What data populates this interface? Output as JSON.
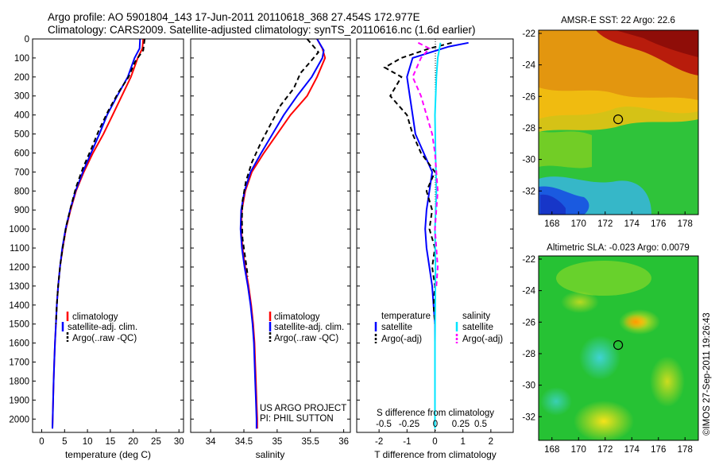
{
  "header": {
    "line1": "Argo profile: AO 5901804_143 17-Jun-2011 20110618_368 27.454S 172.977E",
    "line2": "Climatology: CARS2009. Satellite-adjusted climatology: synTS_20110616.nc (1.6d earlier)"
  },
  "chart_data": [
    {
      "type": "line",
      "panel": "temperature",
      "xlabel": "temperature (deg C)",
      "xlim": [
        -2,
        31
      ],
      "ylim": [
        2070,
        0
      ],
      "xticks": [
        0,
        5,
        10,
        15,
        20,
        25,
        30
      ],
      "yticks": [
        0,
        100,
        200,
        300,
        400,
        500,
        600,
        700,
        800,
        900,
        1000,
        1100,
        1200,
        1300,
        1400,
        1500,
        1600,
        1700,
        1800,
        1900,
        2000
      ],
      "legend": [
        "climatology",
        "satellite-adj. clim.",
        "Argo(..raw -QC)"
      ],
      "series": [
        {
          "name": "climatology",
          "color": "#ff0000",
          "points": [
            [
              22.2,
              0
            ],
            [
              22.0,
              50
            ],
            [
              21.0,
              100
            ],
            [
              19.5,
              200
            ],
            [
              17.5,
              300
            ],
            [
              15.5,
              400
            ],
            [
              13.5,
              500
            ],
            [
              11.2,
              600
            ],
            [
              9.2,
              700
            ],
            [
              7.5,
              800
            ],
            [
              6.3,
              900
            ],
            [
              5.3,
              1000
            ],
            [
              4.6,
              1100
            ],
            [
              4.0,
              1200
            ],
            [
              3.6,
              1300
            ],
            [
              3.3,
              1400
            ],
            [
              3.1,
              1500
            ],
            [
              2.9,
              1600
            ],
            [
              2.75,
              1700
            ],
            [
              2.6,
              1800
            ],
            [
              2.5,
              1900
            ],
            [
              2.4,
              2000
            ],
            [
              2.35,
              2050
            ]
          ]
        },
        {
          "name": "satellite-adj. clim.",
          "color": "#0000ff",
          "points": [
            [
              21.5,
              0
            ],
            [
              21.4,
              50
            ],
            [
              20.3,
              100
            ],
            [
              18.8,
              200
            ],
            [
              16.5,
              300
            ],
            [
              14.3,
              400
            ],
            [
              12.6,
              500
            ],
            [
              10.8,
              600
            ],
            [
              9.0,
              700
            ],
            [
              7.4,
              800
            ],
            [
              6.2,
              900
            ],
            [
              5.2,
              1000
            ],
            [
              4.5,
              1100
            ],
            [
              4.0,
              1200
            ],
            [
              3.6,
              1300
            ],
            [
              3.3,
              1400
            ],
            [
              3.1,
              1500
            ],
            [
              2.9,
              1600
            ],
            [
              2.75,
              1700
            ],
            [
              2.6,
              1800
            ],
            [
              2.5,
              1900
            ],
            [
              2.4,
              2000
            ],
            [
              2.35,
              2050
            ]
          ]
        },
        {
          "name": "Argo(..raw -QC)",
          "color": "#000000",
          "dash": true,
          "points": [
            [
              22.5,
              0
            ],
            [
              22.2,
              60
            ],
            [
              20.4,
              120
            ],
            [
              19.0,
              200
            ],
            [
              16.8,
              280
            ],
            [
              14.5,
              380
            ],
            [
              12.5,
              480
            ],
            [
              10.8,
              580
            ],
            [
              9.0,
              680
            ],
            [
              7.5,
              780
            ],
            [
              6.4,
              880
            ],
            [
              5.4,
              980
            ],
            [
              4.7,
              1080
            ],
            [
              4.1,
              1180
            ],
            [
              3.6,
              1300
            ],
            [
              3.3,
              1400
            ],
            [
              3.1,
              1500
            ]
          ]
        }
      ]
    },
    {
      "type": "line",
      "panel": "salinity",
      "xlabel": "salinity",
      "xlim": [
        33.7,
        36.1
      ],
      "ylim": [
        2070,
        0
      ],
      "xticks": [
        34,
        34.5,
        35,
        35.5,
        36
      ],
      "legend": [
        "climatology",
        "satellite-adj. clim.",
        "Argo(..raw -QC)"
      ],
      "series": [
        {
          "name": "climatology",
          "color": "#ff0000",
          "points": [
            [
              35.6,
              0
            ],
            [
              35.68,
              50
            ],
            [
              35.72,
              100
            ],
            [
              35.6,
              200
            ],
            [
              35.45,
              300
            ],
            [
              35.2,
              400
            ],
            [
              35.0,
              500
            ],
            [
              34.8,
              600
            ],
            [
              34.62,
              700
            ],
            [
              34.52,
              800
            ],
            [
              34.47,
              900
            ],
            [
              34.46,
              1000
            ],
            [
              34.48,
              1100
            ],
            [
              34.52,
              1200
            ],
            [
              34.57,
              1300
            ],
            [
              34.61,
              1400
            ],
            [
              34.64,
              1500
            ],
            [
              34.66,
              1600
            ],
            [
              34.67,
              1700
            ],
            [
              34.68,
              1800
            ],
            [
              34.69,
              1900
            ],
            [
              34.7,
              2000
            ],
            [
              34.7,
              2050
            ]
          ]
        },
        {
          "name": "satellite-adj. clim.",
          "color": "#0000ff",
          "points": [
            [
              35.6,
              0
            ],
            [
              35.7,
              60
            ],
            [
              35.68,
              100
            ],
            [
              35.52,
              200
            ],
            [
              35.3,
              300
            ],
            [
              35.1,
              400
            ],
            [
              34.93,
              500
            ],
            [
              34.76,
              600
            ],
            [
              34.6,
              700
            ],
            [
              34.51,
              800
            ],
            [
              34.46,
              900
            ],
            [
              34.45,
              1000
            ],
            [
              34.47,
              1100
            ],
            [
              34.51,
              1200
            ],
            [
              34.56,
              1300
            ],
            [
              34.6,
              1400
            ],
            [
              34.63,
              1500
            ],
            [
              34.65,
              1600
            ],
            [
              34.66,
              1700
            ],
            [
              34.67,
              1800
            ],
            [
              34.68,
              1900
            ],
            [
              34.69,
              2000
            ],
            [
              34.69,
              2050
            ]
          ]
        },
        {
          "name": "Argo(..raw -QC)",
          "color": "#000000",
          "dash": true,
          "points": [
            [
              35.45,
              0
            ],
            [
              35.55,
              40
            ],
            [
              35.62,
              70
            ],
            [
              35.5,
              120
            ],
            [
              35.35,
              180
            ],
            [
              35.25,
              260
            ],
            [
              35.05,
              350
            ],
            [
              34.9,
              450
            ],
            [
              34.75,
              550
            ],
            [
              34.62,
              650
            ],
            [
              34.53,
              750
            ],
            [
              34.48,
              850
            ],
            [
              34.47,
              950
            ],
            [
              34.48,
              1050
            ],
            [
              34.52,
              1150
            ],
            [
              34.56,
              1250
            ]
          ]
        }
      ]
    },
    {
      "type": "line",
      "panel": "difference",
      "xlabel": "T difference from climatology",
      "xlabel_top": "S difference from climatology",
      "xlim": [
        -2.8,
        2.8
      ],
      "ylim": [
        2070,
        0
      ],
      "xticks_bottom": [
        -2,
        -1,
        0,
        1,
        2
      ],
      "xticks_top_labels": [
        "-0.5",
        "-0.25",
        "0",
        "0.25",
        "0.5"
      ],
      "legend_left_title": "temperature",
      "legend_right_title": "salinity",
      "legend": [
        "satellite",
        "Argo(-adj)",
        "satellite",
        "Argo(-adj)"
      ],
      "series": [
        {
          "name": "temperature satellite",
          "color": "#0000ff",
          "points": [
            [
              1.2,
              20
            ],
            [
              0.5,
              40
            ],
            [
              -0.8,
              100
            ],
            [
              -1.0,
              200
            ],
            [
              -0.9,
              300
            ],
            [
              -0.8,
              400
            ],
            [
              -0.7,
              500
            ],
            [
              -0.4,
              600
            ],
            [
              -0.1,
              700
            ],
            [
              -0.2,
              800
            ],
            [
              -0.3,
              900
            ],
            [
              -0.35,
              1000
            ],
            [
              -0.3,
              1100
            ],
            [
              -0.2,
              1200
            ],
            [
              -0.1,
              1300
            ],
            [
              -0.05,
              1400
            ],
            [
              0,
              1500
            ],
            [
              0,
              1600
            ],
            [
              0,
              1700
            ]
          ]
        },
        {
          "name": "temperature Argo(-adj)",
          "color": "#000000",
          "dash": true,
          "points": [
            [
              0.6,
              20
            ],
            [
              -0.2,
              50
            ],
            [
              -1.2,
              100
            ],
            [
              -1.8,
              150
            ],
            [
              -1.2,
              200
            ],
            [
              -1.6,
              300
            ],
            [
              -1.0,
              400
            ],
            [
              -0.8,
              500
            ],
            [
              -0.5,
              600
            ],
            [
              0,
              700
            ],
            [
              -0.3,
              800
            ],
            [
              -0.1,
              900
            ],
            [
              -0.2,
              1000
            ],
            [
              0,
              1100
            ],
            [
              -0.1,
              1200
            ],
            [
              0,
              1300
            ],
            [
              -0.05,
              1400
            ],
            [
              0,
              1500
            ]
          ]
        },
        {
          "name": "salinity satellite",
          "color": "#00e5ff",
          "points": [
            [
              0.2,
              20
            ],
            [
              0.1,
              100
            ],
            [
              0.05,
              200
            ],
            [
              0,
              400
            ],
            [
              0.02,
              600
            ],
            [
              0.05,
              800
            ],
            [
              0,
              1000
            ],
            [
              0.02,
              1200
            ],
            [
              0.01,
              1400
            ],
            [
              0,
              1600
            ],
            [
              0,
              1800
            ],
            [
              0,
              2000
            ],
            [
              0,
              2050
            ]
          ]
        },
        {
          "name": "salinity Argo(-adj)",
          "color": "#ff00ff",
          "dash": true,
          "points": [
            [
              -0.6,
              20
            ],
            [
              -0.2,
              50
            ],
            [
              -0.5,
              100
            ],
            [
              -0.8,
              200
            ],
            [
              -0.5,
              300
            ],
            [
              -0.3,
              400
            ],
            [
              -0.1,
              500
            ],
            [
              0,
              600
            ],
            [
              0.1,
              800
            ],
            [
              0,
              1000
            ],
            [
              0.1,
              1200
            ],
            [
              0.05,
              1300
            ]
          ]
        }
      ]
    },
    {
      "type": "heatmap",
      "panel": "sst-map",
      "title": "AMSR-E SST: 22 Argo: 22.6",
      "xlim": [
        167,
        179
      ],
      "ylim": [
        -33.5,
        -21.8
      ],
      "xticks": [
        168,
        170,
        172,
        174,
        176,
        178
      ],
      "yticks": [
        -22,
        -24,
        -26,
        -28,
        -30,
        -32
      ],
      "marker": {
        "lon": 172.977,
        "lat": -27.454
      }
    },
    {
      "type": "heatmap",
      "panel": "sla-map",
      "title": "Altimetric SLA: -0.023 Argo: 0.0079",
      "xlim": [
        167,
        179
      ],
      "ylim": [
        -33.5,
        -21.8
      ],
      "xticks": [
        168,
        170,
        172,
        174,
        176,
        178
      ],
      "yticks": [
        -22,
        -24,
        -26,
        -28,
        -30,
        -32
      ],
      "marker": {
        "lon": 172.977,
        "lat": -27.454
      }
    }
  ],
  "annotations": {
    "project_line1": "US ARGO PROJECT",
    "project_line2": "PI: PHIL SUTTON",
    "imos_stamp": "©IMOS 27-Sep-2011 19:26:43"
  },
  "colors": {
    "climatology": "#ff0000",
    "satellite": "#0000ff",
    "argo": "#000000",
    "salinity_sat": "#00e5ff",
    "salinity_argo": "#ff00ff"
  }
}
